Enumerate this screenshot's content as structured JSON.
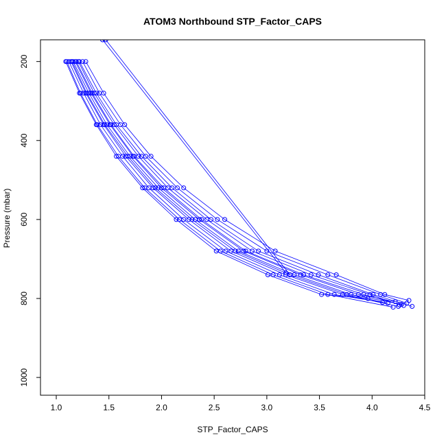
{
  "chart_data": {
    "type": "line",
    "title": "ATOM3 Northbound STP_Factor_CAPS",
    "xlabel": "STP_Factor_CAPS",
    "ylabel": "Pressure (mbar)",
    "xlim": [
      0.85,
      4.5
    ],
    "ylim": [
      1045,
      145
    ],
    "y_reversed": true,
    "grid": false,
    "x_ticks": [
      "1.0",
      "1.5",
      "2.0",
      "2.5",
      "3.0",
      "3.5",
      "4.0",
      "4.5"
    ],
    "y_ticks": [
      "200",
      "400",
      "600",
      "800",
      "1000"
    ],
    "series_color": "#0000ff",
    "series": [
      {
        "x": [
          1.14,
          1.28,
          1.45,
          1.66,
          1.92,
          2.26,
          2.66,
          3.18,
          3.72,
          4.25
        ],
        "y": [
          200,
          280,
          360,
          440,
          520,
          600,
          680,
          740,
          790,
          820
        ]
      },
      {
        "x": [
          1.19,
          1.34,
          1.52,
          1.74,
          2.02,
          2.38,
          2.8,
          3.35,
          3.92,
          4.3
        ],
        "y": [
          200,
          280,
          360,
          440,
          520,
          600,
          680,
          740,
          790,
          818
        ]
      },
      {
        "x": [
          1.1,
          1.23,
          1.39,
          1.59,
          1.84,
          2.17,
          2.56,
          3.06,
          3.58,
          4.2
        ],
        "y": [
          200,
          280,
          360,
          440,
          520,
          600,
          680,
          740,
          790,
          822
        ]
      },
      {
        "x": [
          1.22,
          1.38,
          1.57,
          1.81,
          2.1,
          2.47,
          2.92,
          3.49,
          4.01,
          4.38
        ],
        "y": [
          200,
          280,
          360,
          440,
          520,
          600,
          680,
          740,
          790,
          820
        ]
      },
      {
        "x": [
          1.16,
          1.31,
          1.48,
          1.7,
          1.97,
          2.32,
          2.73,
          3.26,
          3.8,
          4.28
        ],
        "y": [
          200,
          280,
          360,
          440,
          520,
          600,
          680,
          740,
          790,
          815
        ]
      },
      {
        "x": [
          1.12,
          1.26,
          1.42,
          1.63,
          1.88,
          2.21,
          2.61,
          3.12,
          3.64,
          4.1
        ],
        "y": [
          200,
          280,
          360,
          440,
          520,
          600,
          680,
          740,
          790,
          810
        ]
      },
      {
        "x": [
          1.25,
          1.41,
          1.61,
          1.85,
          2.15,
          2.53,
          3.0,
          3.58,
          4.08,
          4.33
        ],
        "y": [
          200,
          280,
          360,
          440,
          520,
          600,
          680,
          740,
          790,
          812
        ]
      },
      {
        "x": [
          1.18,
          1.33,
          1.51,
          1.73,
          2.0,
          2.36,
          2.78,
          3.32,
          3.87,
          4.22
        ],
        "y": [
          200,
          280,
          360,
          440,
          520,
          600,
          680,
          740,
          790,
          808
        ]
      },
      {
        "x": [
          1.09,
          1.22,
          1.38,
          1.57,
          1.82,
          2.14,
          2.52,
          3.01,
          3.52,
          3.96
        ],
        "y": [
          200,
          280,
          360,
          440,
          520,
          600,
          680,
          740,
          790,
          800
        ]
      },
      {
        "x": [
          1.28,
          1.45,
          1.65,
          1.9,
          2.21,
          2.6,
          3.08,
          3.66,
          4.12,
          4.35
        ],
        "y": [
          200,
          280,
          360,
          440,
          520,
          600,
          680,
          740,
          790,
          805
        ]
      },
      {
        "x": [
          1.15,
          1.29,
          1.46,
          1.68,
          1.94,
          2.29,
          2.7,
          3.22,
          3.76,
          4.15
        ],
        "y": [
          200,
          280,
          360,
          440,
          520,
          600,
          680,
          740,
          790,
          812
        ]
      },
      {
        "x": [
          1.21,
          1.36,
          1.55,
          1.78,
          2.06,
          2.43,
          2.86,
          3.42,
          3.98,
          4.26
        ],
        "y": [
          200,
          280,
          360,
          440,
          520,
          600,
          680,
          740,
          790,
          816
        ]
      },
      {
        "x": [
          1.44,
          3.18
        ],
        "y": [
          145,
          735
        ]
      },
      {
        "x": [
          1.47,
          3.22
        ],
        "y": [
          145,
          740
        ]
      }
    ]
  }
}
